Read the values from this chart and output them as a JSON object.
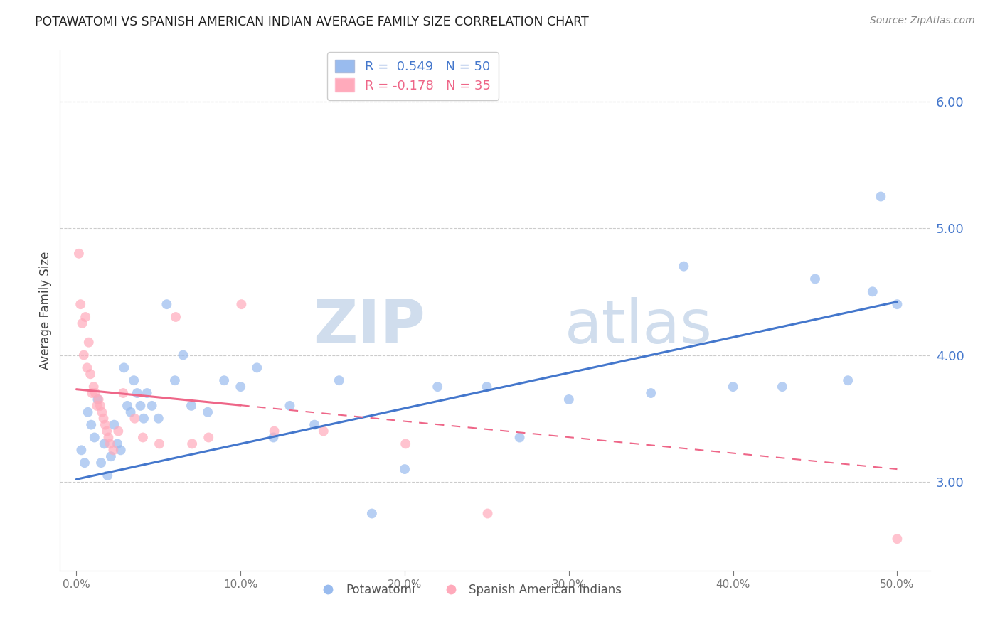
{
  "title": "POTAWATOMI VS SPANISH AMERICAN INDIAN AVERAGE FAMILY SIZE CORRELATION CHART",
  "source": "Source: ZipAtlas.com",
  "ylabel": "Average Family Size",
  "xlabel_ticks": [
    "0.0%",
    "10.0%",
    "20.0%",
    "30.0%",
    "40.0%",
    "50.0%"
  ],
  "xlabel_vals": [
    0.0,
    10.0,
    20.0,
    30.0,
    40.0,
    50.0
  ],
  "ytick_vals": [
    3.0,
    4.0,
    5.0,
    6.0
  ],
  "ytick_labels": [
    "3.00",
    "4.00",
    "5.00",
    "6.00"
  ],
  "xlim": [
    -1.0,
    52.0
  ],
  "ylim": [
    2.3,
    6.4
  ],
  "blue_R": 0.549,
  "blue_N": 50,
  "pink_R": -0.178,
  "pink_N": 35,
  "background_color": "#ffffff",
  "blue_color": "#99bbee",
  "pink_color": "#ffaabb",
  "blue_line_color": "#4477cc",
  "pink_line_color": "#ee6688",
  "grid_color": "#cccccc",
  "blue_x": [
    0.3,
    0.5,
    0.7,
    0.9,
    1.1,
    1.3,
    1.5,
    1.7,
    1.9,
    2.1,
    2.3,
    2.5,
    2.7,
    2.9,
    3.1,
    3.3,
    3.5,
    3.7,
    3.9,
    4.1,
    4.3,
    4.6,
    5.0,
    5.5,
    6.0,
    6.5,
    7.0,
    8.0,
    9.0,
    10.0,
    11.0,
    12.0,
    13.0,
    14.5,
    16.0,
    18.0,
    20.0,
    22.0,
    25.0,
    27.0,
    30.0,
    35.0,
    37.0,
    40.0,
    43.0,
    45.0,
    47.0,
    48.5,
    49.0,
    50.0
  ],
  "blue_y": [
    3.25,
    3.15,
    3.55,
    3.45,
    3.35,
    3.65,
    3.15,
    3.3,
    3.05,
    3.2,
    3.45,
    3.3,
    3.25,
    3.9,
    3.6,
    3.55,
    3.8,
    3.7,
    3.6,
    3.5,
    3.7,
    3.6,
    3.5,
    4.4,
    3.8,
    4.0,
    3.6,
    3.55,
    3.8,
    3.75,
    3.9,
    3.35,
    3.6,
    3.45,
    3.8,
    2.75,
    3.1,
    3.75,
    3.75,
    3.35,
    3.65,
    3.7,
    4.7,
    3.75,
    3.75,
    4.6,
    3.8,
    4.5,
    5.25,
    4.4
  ],
  "pink_x": [
    0.15,
    0.25,
    0.35,
    0.45,
    0.55,
    0.65,
    0.75,
    0.85,
    0.95,
    1.05,
    1.15,
    1.25,
    1.35,
    1.45,
    1.55,
    1.65,
    1.75,
    1.85,
    1.95,
    2.05,
    2.25,
    2.55,
    2.85,
    3.55,
    4.05,
    5.05,
    6.05,
    7.05,
    8.05,
    10.05,
    12.05,
    15.05,
    20.05,
    25.05,
    50.0
  ],
  "pink_y": [
    4.8,
    4.4,
    4.25,
    4.0,
    4.3,
    3.9,
    4.1,
    3.85,
    3.7,
    3.75,
    3.7,
    3.6,
    3.65,
    3.6,
    3.55,
    3.5,
    3.45,
    3.4,
    3.35,
    3.3,
    3.25,
    3.4,
    3.7,
    3.5,
    3.35,
    3.3,
    4.3,
    3.3,
    3.35,
    4.4,
    3.4,
    3.4,
    3.3,
    2.75,
    2.55
  ],
  "blue_line_x0": 0.0,
  "blue_line_x1": 50.0,
  "blue_line_y0": 3.02,
  "blue_line_y1": 4.42,
  "pink_line_x0": 0.0,
  "pink_line_x1": 50.0,
  "pink_line_y0": 3.73,
  "pink_line_y1": 3.1,
  "pink_dash_solid_end": 10.0,
  "legend_label_bottom_blue": "Potawatomi",
  "legend_label_bottom_pink": "Spanish American Indians"
}
